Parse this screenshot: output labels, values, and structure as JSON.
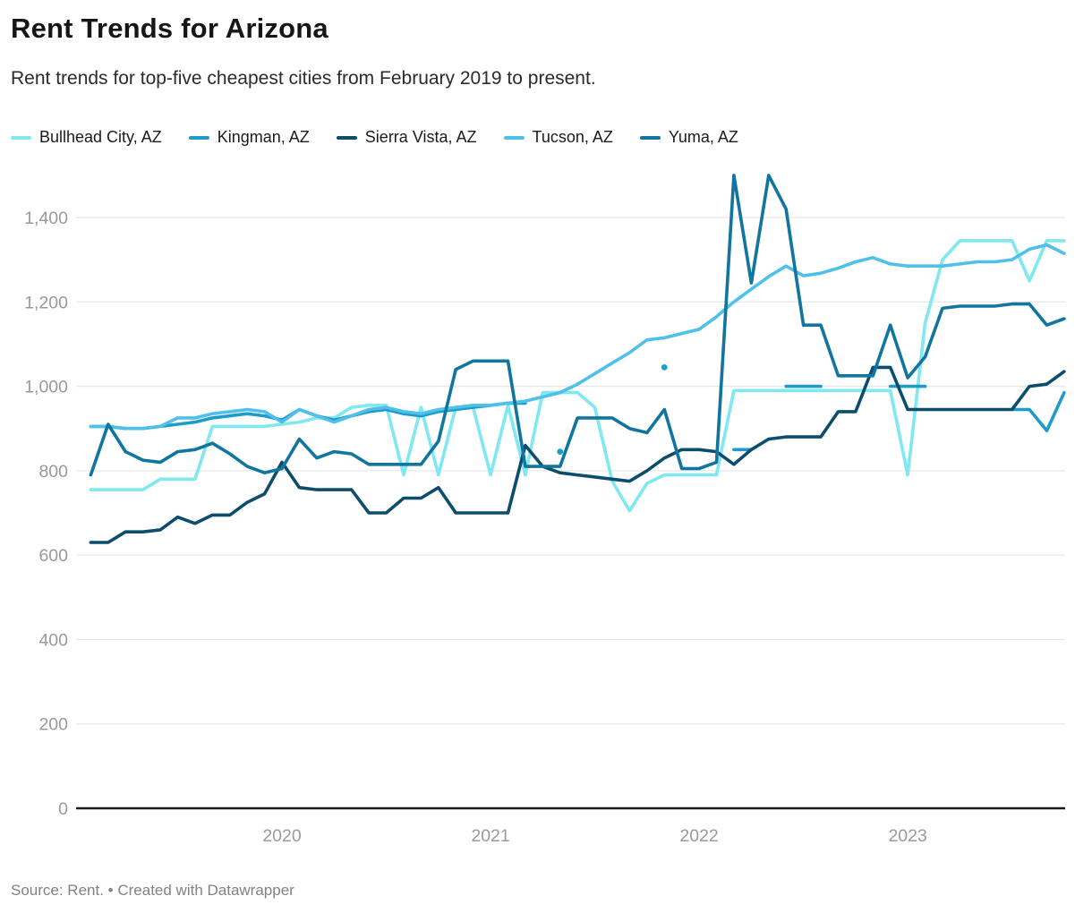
{
  "footer": {
    "source": "Source: Rent. • Created with Datawrapper"
  },
  "chart_data": {
    "type": "line",
    "title": "Rent Trends for Arizona",
    "subtitle": "Rent trends for top-five cheapest cities from February 2019 to present.",
    "x_unit": "month",
    "x": [
      "Feb 2019",
      "Mar 2019",
      "Apr 2019",
      "May 2019",
      "Jun 2019",
      "Jul 2019",
      "Aug 2019",
      "Sep 2019",
      "Oct 2019",
      "Nov 2019",
      "Dec 2019",
      "Jan 2020",
      "Feb 2020",
      "Mar 2020",
      "Apr 2020",
      "May 2020",
      "Jun 2020",
      "Jul 2020",
      "Aug 2020",
      "Sep 2020",
      "Oct 2020",
      "Nov 2020",
      "Dec 2020",
      "Jan 2021",
      "Feb 2021",
      "Mar 2021",
      "Apr 2021",
      "May 2021",
      "Jun 2021",
      "Jul 2021",
      "Aug 2021",
      "Sep 2021",
      "Oct 2021",
      "Nov 2021",
      "Dec 2021",
      "Jan 2022",
      "Feb 2022",
      "Mar 2022",
      "Apr 2022",
      "May 2022",
      "Jun 2022",
      "Jul 2022",
      "Aug 2022",
      "Sep 2022",
      "Oct 2022",
      "Nov 2022",
      "Dec 2022",
      "Jan 2023",
      "Feb 2023",
      "Mar 2023",
      "Apr 2023",
      "May 2023",
      "Jun 2023",
      "Jul 2023",
      "Aug 2023",
      "Sep 2023",
      "Oct 2023"
    ],
    "series": [
      {
        "name": "Bullhead City, AZ",
        "color": "#7FE8F0",
        "values": [
          755,
          755,
          755,
          755,
          780,
          780,
          780,
          905,
          905,
          905,
          905,
          910,
          915,
          925,
          925,
          950,
          955,
          955,
          790,
          950,
          790,
          950,
          950,
          790,
          955,
          790,
          985,
          985,
          985,
          950,
          775,
          705,
          770,
          790,
          790,
          790,
          790,
          990,
          990,
          990,
          990,
          990,
          990,
          990,
          990,
          990,
          990,
          790,
          1150,
          1300,
          1345,
          1345,
          1345,
          1345,
          1250,
          1345,
          1345
        ]
      },
      {
        "name": "Kingman, AZ",
        "color": "#1E9BC9",
        "values": [
          905,
          905,
          900,
          900,
          905,
          910,
          915,
          925,
          930,
          935,
          930,
          920,
          945,
          930,
          920,
          930,
          940,
          945,
          935,
          930,
          940,
          945,
          950,
          955,
          960,
          960,
          null,
          845,
          null,
          null,
          null,
          null,
          null,
          1045,
          null,
          null,
          null,
          850,
          850,
          null,
          1000,
          1000,
          1000,
          null,
          null,
          null,
          1000,
          1000,
          1000,
          null,
          null,
          null,
          null,
          945,
          945,
          895,
          985
        ]
      },
      {
        "name": "Sierra Vista, AZ",
        "color": "#0C4D6E",
        "values": [
          630,
          630,
          655,
          655,
          660,
          690,
          675,
          695,
          695,
          725,
          745,
          820,
          760,
          755,
          755,
          755,
          700,
          700,
          735,
          735,
          760,
          700,
          700,
          700,
          700,
          860,
          810,
          795,
          790,
          785,
          780,
          775,
          800,
          830,
          850,
          850,
          845,
          815,
          850,
          875,
          880,
          880,
          880,
          940,
          940,
          1045,
          1045,
          945,
          945,
          945,
          945,
          945,
          945,
          945,
          1000,
          1005,
          1035
        ]
      },
      {
        "name": "Tucson, AZ",
        "color": "#4FC0EA",
        "values": [
          905,
          905,
          900,
          900,
          905,
          925,
          925,
          935,
          940,
          945,
          940,
          915,
          945,
          930,
          915,
          930,
          945,
          950,
          940,
          935,
          945,
          950,
          955,
          955,
          960,
          965,
          975,
          985,
          1005,
          1030,
          1055,
          1080,
          1110,
          1115,
          1125,
          1135,
          1165,
          1200,
          1230,
          1260,
          1285,
          1262,
          1268,
          1280,
          1295,
          1305,
          1290,
          1285,
          1285,
          1285,
          1290,
          1295,
          1295,
          1300,
          1325,
          1335,
          1315
        ]
      },
      {
        "name": "Yuma, AZ",
        "color": "#10759F",
        "values": [
          790,
          910,
          845,
          825,
          820,
          845,
          850,
          865,
          840,
          810,
          795,
          805,
          875,
          830,
          845,
          840,
          815,
          815,
          815,
          815,
          870,
          1040,
          1060,
          1060,
          1060,
          810,
          810,
          810,
          925,
          925,
          925,
          900,
          890,
          945,
          805,
          805,
          820,
          1500,
          1245,
          1500,
          1420,
          1145,
          1145,
          1025,
          1025,
          1025,
          1145,
          1020,
          1070,
          1185,
          1190,
          1190,
          1190,
          1195,
          1195,
          1145,
          1160
        ]
      }
    ],
    "ylim": [
      0,
      1500
    ],
    "yticks": [
      0,
      200,
      400,
      600,
      800,
      1000,
      1200,
      1400
    ],
    "x_ticks": [
      {
        "label": "2020",
        "month_index": 11
      },
      {
        "label": "2021",
        "month_index": 23
      },
      {
        "label": "2022",
        "month_index": 35
      },
      {
        "label": "2023",
        "month_index": 47
      }
    ],
    "grid": "horizontal",
    "legend_position": "top",
    "colors": {
      "grid_line": "#e8e8e8",
      "baseline": "#1a1a1a",
      "tick_label": "#9a9a9a",
      "title_text": "#161616",
      "subtitle_text": "#2b2b2b",
      "footer_text": "#828282"
    }
  }
}
